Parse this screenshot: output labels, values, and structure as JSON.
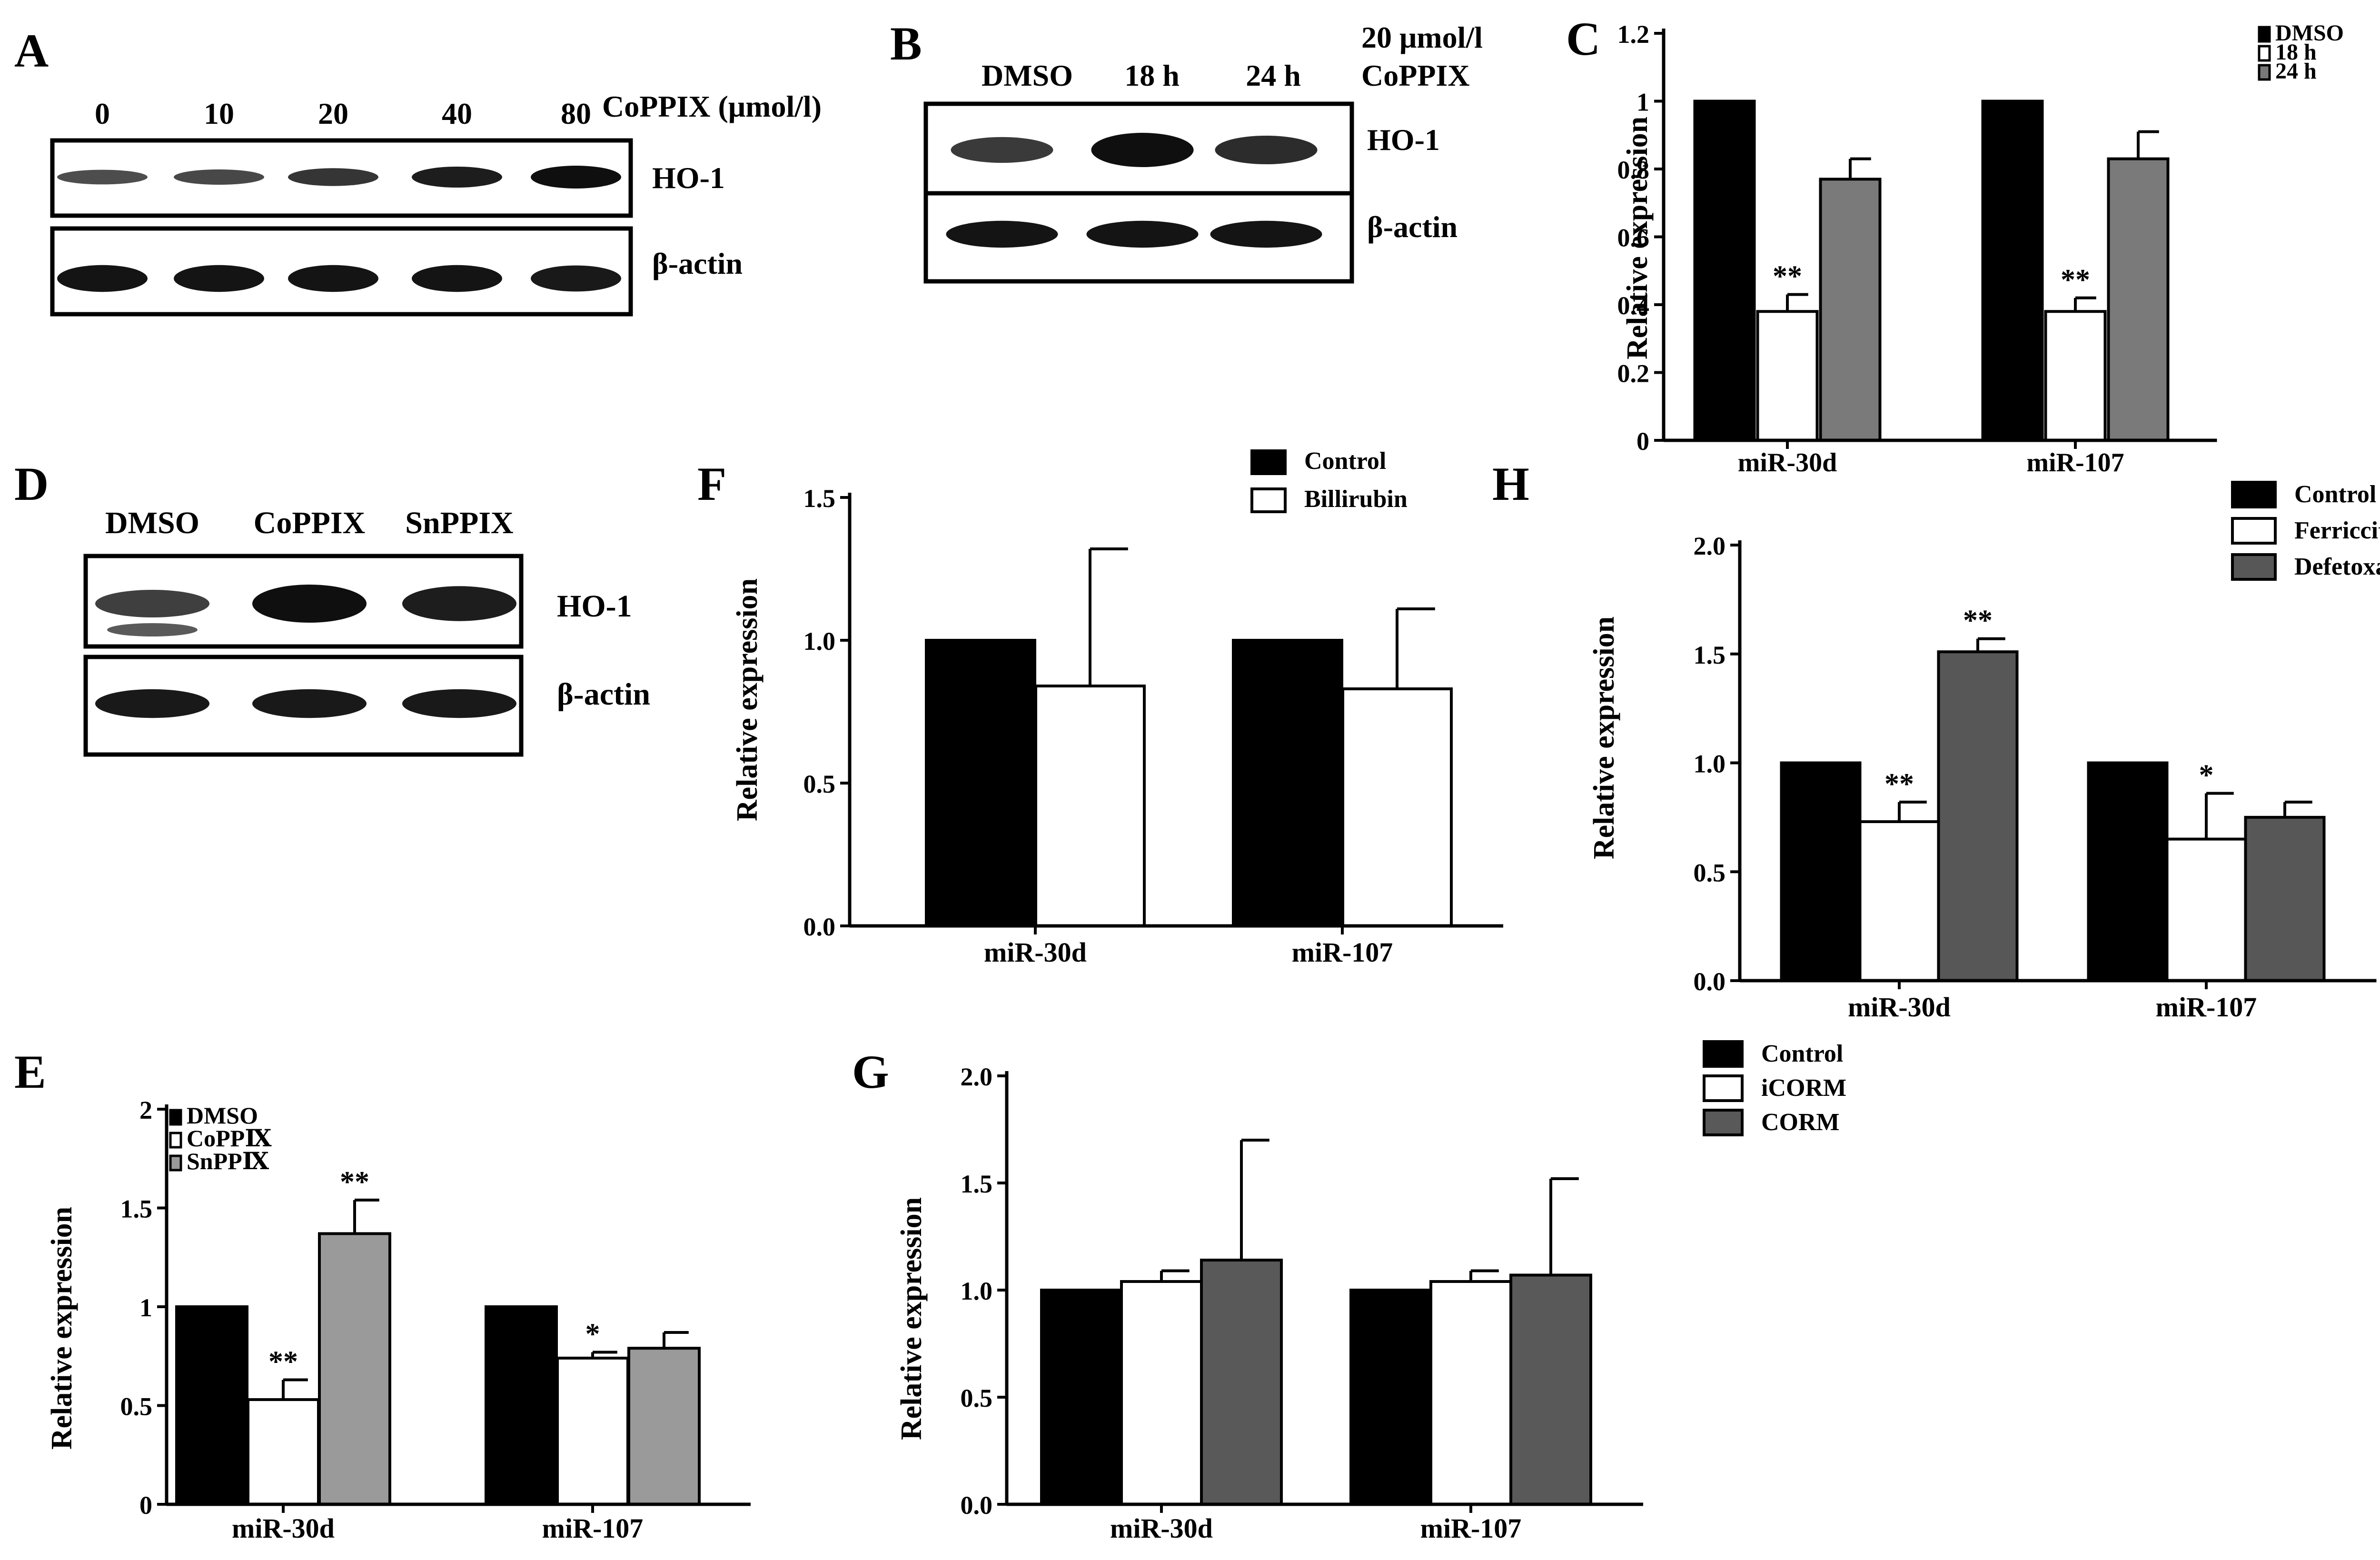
{
  "colors": {
    "black": "#000000",
    "white": "#ffffff",
    "gray_c": "#7a7a7a",
    "gray_e": "#9a9a9a",
    "gray_g": "#595959",
    "gray_h": "#575757"
  },
  "blots": [
    {
      "panel": "A",
      "lanes": [
        "0",
        "10",
        "20",
        "40",
        "80"
      ],
      "treatment_label": "CoPPIX (μmol/l)",
      "rows": [
        {
          "label": "HO-1",
          "intensities": [
            0.35,
            0.4,
            0.6,
            0.85,
            1.0
          ]
        },
        {
          "label": "β-actin",
          "intensities": [
            0.95,
            0.95,
            0.95,
            0.95,
            0.9
          ]
        }
      ]
    },
    {
      "panel": "B",
      "lanes": [
        "DMSO",
        "18 h",
        "24 h"
      ],
      "treatment_label": [
        "20 μmol/l",
        "CoPPIX"
      ],
      "rows": [
        {
          "label": "HO-1",
          "intensities": [
            0.55,
            1.0,
            0.7
          ]
        },
        {
          "label": "β-actin",
          "intensities": [
            0.95,
            0.95,
            0.95
          ]
        }
      ]
    },
    {
      "panel": "D",
      "lanes": [
        "DMSO",
        "CoPPIX",
        "SnPPIX"
      ],
      "treatment_label": "",
      "rows": [
        {
          "label": "HO-1",
          "intensities": [
            0.5,
            1.0,
            0.85
          ]
        },
        {
          "label": "β-actin",
          "intensities": [
            0.9,
            0.9,
            0.9
          ]
        }
      ]
    }
  ],
  "chart_data": [
    {
      "panel": "C",
      "type": "bar",
      "categories": [
        "miR-30d",
        "miR-107"
      ],
      "series": [
        {
          "name": "DMSO",
          "values": [
            1.0,
            1.0
          ],
          "errors": [
            0,
            0
          ],
          "color": "#000000"
        },
        {
          "name": "18 h",
          "values": [
            0.38,
            0.38
          ],
          "errors": [
            0.05,
            0.04
          ],
          "color": "#ffffff"
        },
        {
          "name": "24 h",
          "values": [
            0.77,
            0.83
          ],
          "errors": [
            0.06,
            0.08
          ],
          "color": "#7a7a7a"
        }
      ],
      "significance": [
        [
          "",
          "**",
          ""
        ],
        [
          "",
          "**",
          ""
        ]
      ],
      "ylabel": "Relative expression",
      "ylim": [
        0,
        1.2
      ],
      "yticks": [
        "0",
        "0.2",
        "0.4",
        "0.6",
        "0.8",
        "1",
        "1.2"
      ],
      "legend": "top-right"
    },
    {
      "panel": "E",
      "type": "bar",
      "categories": [
        "miR-30d",
        "miR-107"
      ],
      "series": [
        {
          "name": "DMSO",
          "values": [
            1.0,
            1.0
          ],
          "errors": [
            0,
            0
          ],
          "color": "#000000"
        },
        {
          "name": "CoPPⅨ",
          "values": [
            0.53,
            0.74
          ],
          "errors": [
            0.1,
            0.03
          ],
          "color": "#ffffff"
        },
        {
          "name": "SnPPⅨ",
          "values": [
            1.37,
            0.79
          ],
          "errors": [
            0.17,
            0.08
          ],
          "color": "#9a9a9a"
        }
      ],
      "significance": [
        [
          "",
          "**",
          "**"
        ],
        [
          "",
          "*",
          ""
        ]
      ],
      "ylabel": "Relative expression",
      "ylim": [
        0,
        2
      ],
      "yticks": [
        "0",
        "0.5",
        "1",
        "1.5",
        "2"
      ],
      "legend": "top-left"
    },
    {
      "panel": "F",
      "type": "bar",
      "categories": [
        "miR-30d",
        "miR-107"
      ],
      "series": [
        {
          "name": "Control",
          "values": [
            1.0,
            1.0
          ],
          "errors": [
            0,
            0
          ],
          "color": "#000000"
        },
        {
          "name": "Billirubin",
          "values": [
            0.84,
            0.83
          ],
          "errors": [
            0.48,
            0.28
          ],
          "color": "#ffffff"
        }
      ],
      "significance": [
        [
          "",
          ""
        ],
        [
          "",
          ""
        ]
      ],
      "ylabel": "Relative expression",
      "ylim": [
        0,
        1.5
      ],
      "yticks": [
        "0.0",
        "0.5",
        "1.0",
        "1.5"
      ],
      "legend": "top-right"
    },
    {
      "panel": "G",
      "type": "bar",
      "categories": [
        "miR-30d",
        "miR-107"
      ],
      "series": [
        {
          "name": "Control",
          "values": [
            1.0,
            1.0
          ],
          "errors": [
            0,
            0
          ],
          "color": "#000000"
        },
        {
          "name": "iCORM",
          "values": [
            1.04,
            1.04
          ],
          "errors": [
            0.05,
            0.05
          ],
          "color": "#ffffff"
        },
        {
          "name": "CORM",
          "values": [
            1.14,
            1.07
          ],
          "errors": [
            0.56,
            0.45
          ],
          "color": "#595959"
        }
      ],
      "significance": [
        [
          "",
          "",
          ""
        ],
        [
          "",
          "",
          ""
        ]
      ],
      "ylabel": "Relative expression",
      "ylim": [
        0,
        2
      ],
      "yticks": [
        "0.0",
        "0.5",
        "1.0",
        "1.5",
        "2.0"
      ],
      "legend": "right"
    },
    {
      "panel": "H",
      "type": "bar",
      "categories": [
        "miR-30d",
        "miR-107"
      ],
      "series": [
        {
          "name": "Control",
          "values": [
            1.0,
            1.0
          ],
          "errors": [
            0,
            0
          ],
          "color": "#000000"
        },
        {
          "name": "Ferriccitrate",
          "values": [
            0.73,
            0.65
          ],
          "errors": [
            0.09,
            0.21
          ],
          "color": "#ffffff"
        },
        {
          "name": "Defetoxamine",
          "values": [
            1.51,
            0.75
          ],
          "errors": [
            0.06,
            0.07
          ],
          "color": "#575757"
        }
      ],
      "significance": [
        [
          "",
          "**",
          "**"
        ],
        [
          "",
          "*",
          ""
        ]
      ],
      "ylabel": "Relative expression",
      "ylim": [
        0,
        2
      ],
      "yticks": [
        "0.0",
        "0.5",
        "1.0",
        "1.5",
        "2.0"
      ],
      "legend": "top-right"
    }
  ]
}
